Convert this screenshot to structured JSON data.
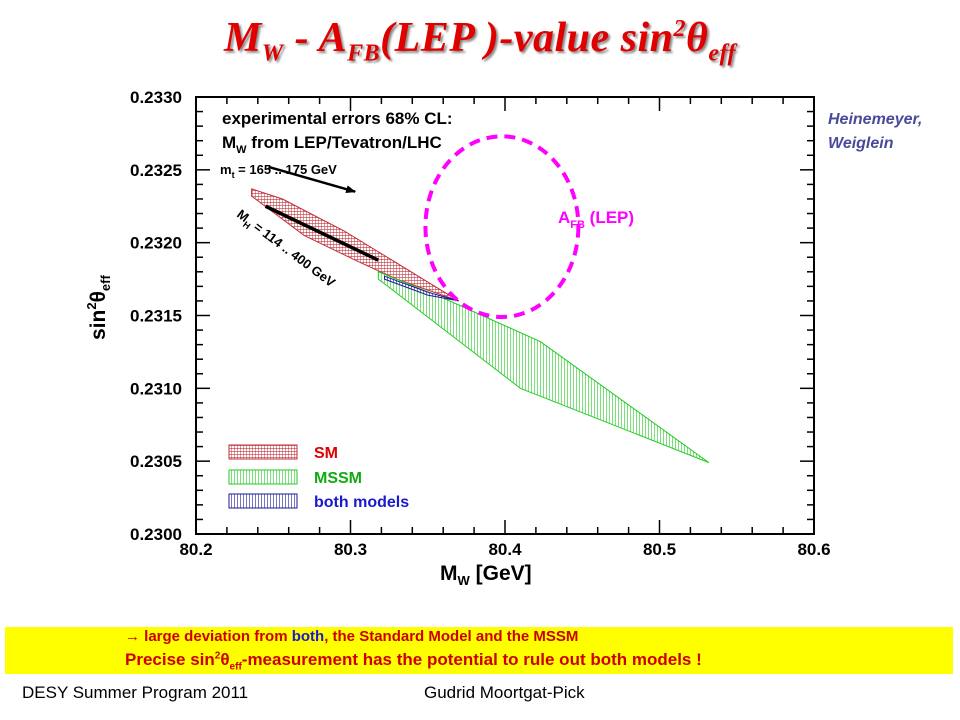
{
  "title": {
    "pre": "M",
    "sub1": "W",
    "mid": " - A",
    "sub2": "FB",
    "post": "(LEP )-value sin",
    "sup": "2",
    "theta": "θ",
    "sub3": "eff"
  },
  "author_note": {
    "line1": "Heinemeyer,",
    "line2": "Weiglein"
  },
  "banner": {
    "arrow": "→",
    "line1_a": " large deviation from ",
    "line1_b": "both",
    "line1_c": ", the Standard Model and the MSSM",
    "line2_a": "Precise sin",
    "line2_sup": "2",
    "line2_theta": "θ",
    "line2_sub": "eff",
    "line2_b": "-measurement has the potential to rule out both models !"
  },
  "footer": {
    "left": "DESY Summer Program 2011",
    "center": "Gudrid Moortgat-Pick"
  },
  "colors": {
    "sm": "#c0303a",
    "mssm": "#22cc22",
    "both": "#1a1a99",
    "afb": "#ff00ff",
    "title": "#e00000",
    "banner": "#ffff00"
  },
  "chart_data": {
    "type": "area",
    "xlabel": {
      "main": "M",
      "sub": "W",
      "rest": " [GeV]"
    },
    "ylabel": {
      "main": "sin",
      "sup": "2",
      "theta": "θ",
      "sub": "eff"
    },
    "xlim": [
      80.2,
      80.6
    ],
    "ylim": [
      0.23,
      0.233
    ],
    "xticks": [
      "80.2",
      "80.3",
      "80.4",
      "80.5",
      "80.6"
    ],
    "yticks": [
      "0.2300",
      "0.2305",
      "0.2310",
      "0.2315",
      "0.2320",
      "0.2325",
      "0.2330"
    ],
    "annotations": {
      "header1": "experimental errors 68% CL:",
      "header2_pre": "M",
      "header2_sub": "W",
      "header2_post": " from LEP/Tevatron/LHC",
      "mt_pre": "m",
      "mt_sub": "t",
      "mt_post": " = 165 .. 175 GeV",
      "mh_pre": "M",
      "mh_sub": "H",
      "mh_post": " = 114 .. 400 GeV",
      "afb_pre": "A",
      "afb_sub": "FB",
      "afb_post": " (LEP)"
    },
    "series": [
      {
        "name": "SM",
        "color": "#c0303a",
        "polygon": [
          [
            80.236,
            0.23237
          ],
          [
            80.256,
            0.2323
          ],
          [
            80.296,
            0.23208
          ],
          [
            80.33,
            0.23186
          ],
          [
            80.37,
            0.2316
          ],
          [
            80.33,
            0.23175
          ],
          [
            80.305,
            0.23187
          ],
          [
            80.27,
            0.23205
          ],
          [
            80.236,
            0.23232
          ]
        ]
      },
      {
        "name": "MSSM",
        "color": "#22cc22",
        "polygon": [
          [
            80.318,
            0.2318
          ],
          [
            80.36,
            0.23162
          ],
          [
            80.423,
            0.23132
          ],
          [
            80.532,
            0.23049
          ],
          [
            80.41,
            0.231
          ],
          [
            80.318,
            0.23175
          ]
        ]
      },
      {
        "name": "both models",
        "color": "#1a1a99",
        "polygon": [
          [
            80.322,
            0.23177
          ],
          [
            80.35,
            0.23166
          ],
          [
            80.37,
            0.2316
          ],
          [
            80.35,
            0.23164
          ],
          [
            80.322,
            0.23175
          ]
        ]
      }
    ],
    "afb_ellipse": {
      "cx": 80.398,
      "cy": 0.23211,
      "rx": 0.0495,
      "ry": 0.00062
    },
    "arrows": [
      {
        "name": "mt",
        "from": [
          80.247,
          0.23252
        ],
        "to": [
          80.303,
          0.23235
        ]
      },
      {
        "name": "mh",
        "from": [
          80.245,
          0.23225
        ],
        "to": [
          80.318,
          0.23188
        ]
      }
    ],
    "legend_position": "bottom-left",
    "grid": false
  }
}
